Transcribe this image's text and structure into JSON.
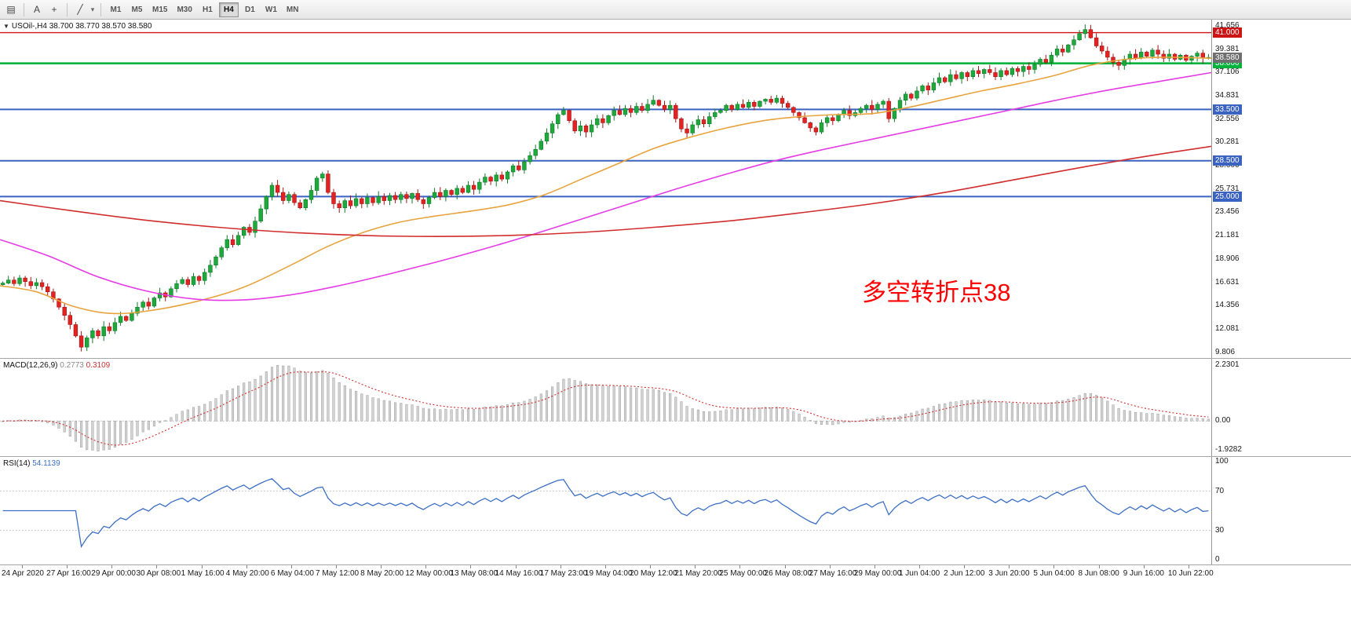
{
  "toolbar": {
    "icons": [
      {
        "name": "chart-window-icon",
        "glyph": "▤"
      },
      {
        "name": "cursor-tool-icon",
        "glyph": "A"
      },
      {
        "name": "crosshair-tool-icon",
        "glyph": "+"
      },
      {
        "name": "line-tools-icon",
        "glyph": "╱"
      },
      {
        "name": "line-tools-caret-icon",
        "glyph": "▾"
      }
    ],
    "timeframes": [
      "M1",
      "M5",
      "M15",
      "M30",
      "H1",
      "H4",
      "D1",
      "W1",
      "MN"
    ],
    "active_timeframe": "H4"
  },
  "chart": {
    "dropdown_glyph": "▼",
    "symbol_header": "USOil-,H4  38.700 38.770 38.570 38.580",
    "annotation": {
      "text": "多空转折点38",
      "color": "#ff0000"
    },
    "current_price": {
      "label": "38.580",
      "value": 38.58,
      "color": "#6f6f6f"
    },
    "colors": {
      "bull": "#1fa83c",
      "bull_border": "#0e7d28",
      "bear": "#e32222",
      "bear_border": "#a51414"
    }
  },
  "chart_data": {
    "type": "candlestick",
    "title": "USOil H4",
    "symbol": "USOil",
    "timeframe": "H4",
    "ohlc_display": {
      "open": "38.700",
      "high": "38.770",
      "low": "38.570",
      "close": "38.580"
    },
    "y_range": {
      "min": 9.24,
      "max": 42.27
    },
    "price_axis_labels": [
      "41.656",
      "39.381",
      "37.106",
      "34.831",
      "32.556",
      "30.281",
      "28.006",
      "25.731",
      "23.456",
      "21.181",
      "18.906",
      "16.631",
      "14.356",
      "12.081",
      "9.806"
    ],
    "hlines": [
      {
        "price": 41.0,
        "label": "41.000",
        "color": "#cc1414",
        "width": 1.4
      },
      {
        "price": 38.0,
        "label": "38.000",
        "color": "#00b33c",
        "width": 2.6
      },
      {
        "price": 33.5,
        "label": "33.500",
        "color": "#3a62c0",
        "width": 2
      },
      {
        "price": 28.5,
        "label": "28.500",
        "color": "#3a62c0",
        "width": 2
      },
      {
        "price": 25.0,
        "label": "25.000",
        "color": "#3a62c0",
        "width": 2
      }
    ],
    "x_labels": [
      "24 Apr 2020",
      "27 Apr 16:00",
      "29 Apr 00:00",
      "30 Apr 08:00",
      "1 May 16:00",
      "4 May 20:00",
      "6 May 04:00",
      "7 May 12:00",
      "8 May 20:00",
      "12 May 00:00",
      "13 May 08:00",
      "14 May 16:00",
      "17 May 23:00",
      "19 May 04:00",
      "20 May 12:00",
      "21 May 20:00",
      "25 May 00:00",
      "26 May 08:00",
      "27 May 16:00",
      "29 May 00:00",
      "1 Jun 04:00",
      "2 Jun 12:00",
      "3 Jun 20:00",
      "5 Jun 04:00",
      "8 Jun 08:00",
      "9 Jun 16:00",
      "10 Jun 22:00"
    ],
    "first_open": 16.4,
    "closes": [
      16.55,
      16.85,
      16.5,
      17.05,
      16.7,
      16.3,
      16.6,
      16.2,
      15.7,
      15.0,
      14.2,
      13.4,
      12.5,
      11.4,
      10.3,
      11.2,
      11.9,
      11.4,
      12.3,
      11.9,
      12.7,
      13.3,
      12.9,
      13.6,
      14.2,
      14.7,
      14.3,
      15.1,
      15.6,
      15.2,
      16.0,
      16.5,
      16.9,
      16.4,
      17.2,
      16.8,
      17.6,
      18.3,
      19.1,
      20.0,
      20.8,
      20.3,
      21.2,
      22.0,
      21.5,
      22.6,
      23.8,
      25.0,
      26.1,
      25.4,
      24.6,
      25.2,
      24.4,
      23.9,
      24.7,
      25.6,
      26.8,
      27.2,
      25.4,
      24.3,
      23.9,
      24.6,
      24.1,
      24.8,
      24.3,
      24.9,
      24.4,
      25.0,
      24.6,
      25.1,
      24.7,
      25.2,
      24.8,
      25.3,
      24.7,
      24.3,
      24.9,
      25.4,
      25.0,
      25.6,
      25.2,
      25.8,
      25.4,
      26.1,
      25.7,
      26.4,
      26.9,
      26.5,
      27.1,
      26.7,
      27.4,
      28.0,
      27.6,
      28.4,
      29.0,
      29.6,
      30.4,
      31.2,
      32.1,
      33.0,
      33.4,
      32.4,
      31.4,
      31.9,
      31.3,
      32.0,
      32.6,
      32.2,
      32.9,
      33.4,
      33.0,
      33.6,
      33.2,
      33.8,
      33.4,
      34.0,
      34.4,
      33.9,
      33.5,
      33.9,
      32.6,
      31.6,
      31.2,
      32.0,
      32.5,
      32.1,
      32.8,
      33.2,
      33.4,
      33.9,
      33.5,
      34.0,
      33.7,
      34.2,
      33.8,
      34.3,
      34.5,
      34.2,
      34.6,
      34.1,
      33.7,
      33.2,
      32.7,
      32.2,
      31.7,
      31.3,
      32.2,
      32.7,
      32.4,
      33.0,
      33.4,
      32.9,
      33.2,
      33.6,
      33.9,
      33.5,
      34.0,
      34.3,
      32.6,
      33.6,
      34.4,
      35.0,
      34.6,
      35.3,
      35.8,
      35.4,
      36.1,
      36.6,
      36.2,
      36.9,
      36.5,
      37.1,
      36.7,
      37.3,
      37.0,
      37.4,
      37.1,
      36.7,
      37.3,
      36.9,
      37.5,
      37.2,
      37.7,
      37.4,
      37.9,
      38.4,
      38.1,
      38.8,
      39.4,
      39.1,
      39.8,
      40.3,
      40.9,
      41.3,
      40.5,
      39.7,
      39.2,
      38.6,
      38.1,
      37.8,
      38.4,
      38.9,
      38.5,
      39.1,
      38.7,
      39.3,
      38.9,
      38.5,
      38.9,
      38.4,
      38.8,
      38.3,
      38.7,
      39.0,
      38.5,
      38.58
    ],
    "ma_lines": [
      {
        "name": "ma-fast-orange",
        "color": "#e8a33d",
        "points": [
          [
            0,
            16.3
          ],
          [
            0.03,
            15.7
          ],
          [
            0.06,
            14.3
          ],
          [
            0.09,
            13.6
          ],
          [
            0.12,
            13.8
          ],
          [
            0.16,
            14.7
          ],
          [
            0.2,
            16.1
          ],
          [
            0.24,
            18.3
          ],
          [
            0.27,
            20.1
          ],
          [
            0.3,
            21.5
          ],
          [
            0.33,
            22.5
          ],
          [
            0.36,
            23.1
          ],
          [
            0.39,
            23.6
          ],
          [
            0.42,
            24.2
          ],
          [
            0.45,
            25.2
          ],
          [
            0.48,
            26.7
          ],
          [
            0.51,
            28.2
          ],
          [
            0.54,
            29.7
          ],
          [
            0.57,
            30.8
          ],
          [
            0.6,
            31.7
          ],
          [
            0.63,
            32.4
          ],
          [
            0.66,
            32.8
          ],
          [
            0.69,
            33.0
          ],
          [
            0.72,
            33.1
          ],
          [
            0.75,
            33.7
          ],
          [
            0.78,
            34.5
          ],
          [
            0.81,
            35.3
          ],
          [
            0.84,
            36.0
          ],
          [
            0.87,
            36.8
          ],
          [
            0.9,
            37.8
          ],
          [
            0.93,
            38.4
          ],
          [
            0.96,
            38.6
          ],
          [
            1,
            38.5
          ]
        ]
      },
      {
        "name": "ma-mid-magenta",
        "color": "#e53ce5",
        "points": [
          [
            0,
            20.8
          ],
          [
            0.04,
            19.2
          ],
          [
            0.08,
            17.2
          ],
          [
            0.12,
            15.8
          ],
          [
            0.16,
            15.0
          ],
          [
            0.2,
            14.9
          ],
          [
            0.24,
            15.4
          ],
          [
            0.28,
            16.3
          ],
          [
            0.32,
            17.4
          ],
          [
            0.36,
            18.6
          ],
          [
            0.4,
            19.9
          ],
          [
            0.44,
            21.3
          ],
          [
            0.48,
            22.8
          ],
          [
            0.52,
            24.3
          ],
          [
            0.56,
            25.8
          ],
          [
            0.6,
            27.2
          ],
          [
            0.64,
            28.5
          ],
          [
            0.68,
            29.6
          ],
          [
            0.72,
            30.6
          ],
          [
            0.76,
            31.6
          ],
          [
            0.8,
            32.6
          ],
          [
            0.84,
            33.6
          ],
          [
            0.88,
            34.6
          ],
          [
            0.92,
            35.5
          ],
          [
            0.96,
            36.3
          ],
          [
            1,
            37.1
          ]
        ]
      },
      {
        "name": "ma-slow-red",
        "color": "#d22d2d",
        "points": [
          [
            0,
            24.6
          ],
          [
            0.06,
            23.6
          ],
          [
            0.12,
            22.7
          ],
          [
            0.18,
            22.0
          ],
          [
            0.24,
            21.5
          ],
          [
            0.3,
            21.2
          ],
          [
            0.36,
            21.1
          ],
          [
            0.42,
            21.2
          ],
          [
            0.48,
            21.5
          ],
          [
            0.54,
            22.0
          ],
          [
            0.6,
            22.6
          ],
          [
            0.66,
            23.4
          ],
          [
            0.72,
            24.3
          ],
          [
            0.78,
            25.4
          ],
          [
            0.84,
            26.7
          ],
          [
            0.9,
            28.0
          ],
          [
            0.95,
            29.0
          ],
          [
            1,
            29.9
          ]
        ]
      }
    ],
    "indicators": [
      {
        "type": "macd",
        "title": "MACD(12,26,9)",
        "values": [
          "0.2773",
          "0.3109"
        ],
        "params": [
          12,
          26,
          9
        ],
        "scale_labels": [
          "2.2301",
          "0.00",
          "-1.9282"
        ],
        "colors": {
          "hist": "#d2d2d2",
          "hist_border": "#9e9e9e",
          "signal": "#d22d2d"
        }
      },
      {
        "type": "rsi",
        "title": "RSI(14)",
        "value": "54.1139",
        "period": 14,
        "levels": [
          70,
          30
        ],
        "scale_labels": [
          "100",
          "70",
          "30",
          "0"
        ],
        "color": "#3c6fc4"
      }
    ]
  }
}
